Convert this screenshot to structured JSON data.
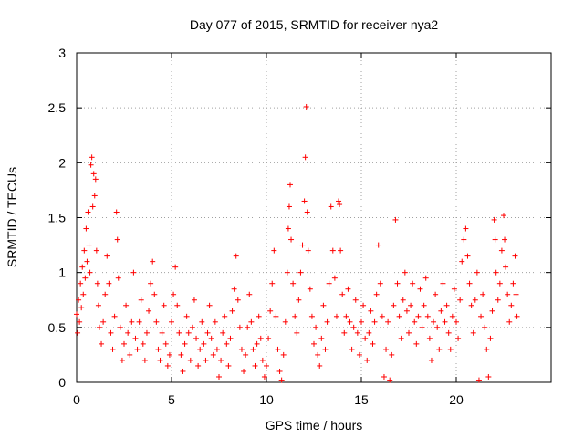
{
  "chart_data": {
    "type": "scatter",
    "title": "Day 077 of 2015, SRMTID for receiver nya2",
    "xlabel": "GPS time / hours",
    "ylabel": "SRMTID / TECUs",
    "xlim": [
      0,
      25
    ],
    "ylim": [
      0,
      3
    ],
    "xticks": [
      0,
      5,
      10,
      15,
      20
    ],
    "yticks": [
      0,
      0.5,
      1,
      1.5,
      2,
      2.5,
      3
    ],
    "xtick_labels": [
      "0",
      "5",
      "10",
      "15",
      "20"
    ],
    "ytick_labels": [
      "0",
      "0.5",
      "1",
      "1.5",
      "2",
      "2.5",
      "3"
    ],
    "grid": true,
    "marker": "+",
    "marker_color": "#ff0000",
    "series": [
      {
        "name": "SRMTID",
        "points": [
          [
            0.0,
            0.62
          ],
          [
            0.05,
            0.45
          ],
          [
            0.1,
            0.75
          ],
          [
            0.15,
            0.55
          ],
          [
            0.2,
            0.9
          ],
          [
            0.25,
            0.68
          ],
          [
            0.3,
            1.05
          ],
          [
            0.35,
            0.8
          ],
          [
            0.4,
            1.2
          ],
          [
            0.45,
            0.95
          ],
          [
            0.5,
            1.4
          ],
          [
            0.55,
            1.1
          ],
          [
            0.6,
            1.55
          ],
          [
            0.65,
            1.25
          ],
          [
            0.7,
            1.0
          ],
          [
            0.75,
            1.98
          ],
          [
            0.8,
            2.05
          ],
          [
            0.85,
            1.6
          ],
          [
            0.9,
            1.9
          ],
          [
            0.95,
            1.7
          ],
          [
            1.0,
            1.85
          ],
          [
            1.05,
            1.2
          ],
          [
            1.1,
            0.9
          ],
          [
            1.15,
            0.7
          ],
          [
            1.2,
            0.5
          ],
          [
            1.3,
            0.35
          ],
          [
            1.4,
            0.55
          ],
          [
            1.5,
            0.8
          ],
          [
            1.6,
            1.15
          ],
          [
            1.7,
            0.9
          ],
          [
            1.8,
            0.45
          ],
          [
            1.9,
            0.3
          ],
          [
            2.0,
            0.6
          ],
          [
            2.1,
            1.55
          ],
          [
            2.15,
            1.3
          ],
          [
            2.2,
            0.95
          ],
          [
            2.3,
            0.5
          ],
          [
            2.4,
            0.2
          ],
          [
            2.5,
            0.35
          ],
          [
            2.6,
            0.7
          ],
          [
            2.7,
            0.45
          ],
          [
            2.8,
            0.25
          ],
          [
            2.9,
            0.55
          ],
          [
            3.0,
            1.0
          ],
          [
            3.1,
            0.4
          ],
          [
            3.2,
            0.3
          ],
          [
            3.3,
            0.55
          ],
          [
            3.4,
            0.75
          ],
          [
            3.5,
            0.35
          ],
          [
            3.6,
            0.2
          ],
          [
            3.7,
            0.45
          ],
          [
            3.8,
            0.65
          ],
          [
            3.9,
            0.9
          ],
          [
            4.0,
            1.1
          ],
          [
            4.1,
            0.8
          ],
          [
            4.2,
            0.55
          ],
          [
            4.3,
            0.3
          ],
          [
            4.4,
            0.2
          ],
          [
            4.5,
            0.45
          ],
          [
            4.6,
            0.7
          ],
          [
            4.7,
            0.35
          ],
          [
            4.8,
            0.15
          ],
          [
            4.9,
            0.25
          ],
          [
            5.0,
            0.55
          ],
          [
            5.1,
            0.8
          ],
          [
            5.2,
            1.05
          ],
          [
            5.3,
            0.7
          ],
          [
            5.4,
            0.45
          ],
          [
            5.5,
            0.25
          ],
          [
            5.6,
            0.1
          ],
          [
            5.7,
            0.35
          ],
          [
            5.8,
            0.6
          ],
          [
            5.9,
            0.45
          ],
          [
            6.0,
            0.2
          ],
          [
            6.1,
            0.5
          ],
          [
            6.2,
            0.75
          ],
          [
            6.3,
            0.4
          ],
          [
            6.4,
            0.15
          ],
          [
            6.5,
            0.3
          ],
          [
            6.6,
            0.55
          ],
          [
            6.7,
            0.35
          ],
          [
            6.8,
            0.2
          ],
          [
            6.9,
            0.45
          ],
          [
            7.0,
            0.7
          ],
          [
            7.1,
            0.4
          ],
          [
            7.2,
            0.25
          ],
          [
            7.3,
            0.55
          ],
          [
            7.4,
            0.3
          ],
          [
            7.5,
            0.05
          ],
          [
            7.6,
            0.2
          ],
          [
            7.7,
            0.45
          ],
          [
            7.8,
            0.6
          ],
          [
            7.9,
            0.35
          ],
          [
            8.0,
            0.15
          ],
          [
            8.1,
            0.4
          ],
          [
            8.2,
            0.65
          ],
          [
            8.3,
            0.85
          ],
          [
            8.4,
            1.15
          ],
          [
            8.5,
            0.75
          ],
          [
            8.6,
            0.5
          ],
          [
            8.7,
            0.3
          ],
          [
            8.8,
            0.1
          ],
          [
            8.9,
            0.25
          ],
          [
            9.0,
            0.5
          ],
          [
            9.1,
            0.8
          ],
          [
            9.2,
            0.55
          ],
          [
            9.3,
            0.3
          ],
          [
            9.4,
            0.15
          ],
          [
            9.5,
            0.35
          ],
          [
            9.6,
            0.6
          ],
          [
            9.7,
            0.4
          ],
          [
            9.8,
            0.2
          ],
          [
            9.9,
            0.05
          ],
          [
            10.0,
            0.15
          ],
          [
            10.1,
            0.4
          ],
          [
            10.2,
            0.65
          ],
          [
            10.3,
            0.9
          ],
          [
            10.4,
            1.2
          ],
          [
            10.5,
            0.6
          ],
          [
            10.6,
            0.3
          ],
          [
            10.7,
            0.1
          ],
          [
            10.8,
            0.02
          ],
          [
            10.9,
            0.25
          ],
          [
            11.0,
            0.55
          ],
          [
            11.1,
            1.0
          ],
          [
            11.15,
            1.4
          ],
          [
            11.2,
            1.6
          ],
          [
            11.25,
            1.8
          ],
          [
            11.3,
            1.3
          ],
          [
            11.4,
            0.9
          ],
          [
            11.5,
            0.6
          ],
          [
            11.6,
            0.45
          ],
          [
            11.7,
            0.75
          ],
          [
            11.8,
            1.0
          ],
          [
            11.9,
            1.25
          ],
          [
            12.0,
            1.65
          ],
          [
            12.05,
            2.05
          ],
          [
            12.1,
            2.51
          ],
          [
            12.15,
            1.55
          ],
          [
            12.2,
            1.2
          ],
          [
            12.3,
            0.85
          ],
          [
            12.4,
            0.6
          ],
          [
            12.5,
            0.35
          ],
          [
            12.6,
            0.5
          ],
          [
            12.7,
            0.25
          ],
          [
            12.8,
            0.15
          ],
          [
            12.9,
            0.4
          ],
          [
            13.0,
            0.7
          ],
          [
            13.1,
            0.3
          ],
          [
            13.2,
            0.55
          ],
          [
            13.3,
            0.9
          ],
          [
            13.4,
            1.6
          ],
          [
            13.5,
            1.2
          ],
          [
            13.6,
            0.95
          ],
          [
            13.7,
            0.6
          ],
          [
            13.8,
            1.65
          ],
          [
            13.85,
            1.62
          ],
          [
            13.9,
            1.2
          ],
          [
            14.0,
            0.8
          ],
          [
            14.1,
            0.45
          ],
          [
            14.2,
            0.6
          ],
          [
            14.3,
            0.85
          ],
          [
            14.4,
            0.55
          ],
          [
            14.5,
            0.3
          ],
          [
            14.6,
            0.5
          ],
          [
            14.7,
            0.75
          ],
          [
            14.8,
            0.45
          ],
          [
            14.9,
            0.25
          ],
          [
            15.0,
            0.55
          ],
          [
            15.1,
            0.7
          ],
          [
            15.2,
            0.4
          ],
          [
            15.3,
            0.2
          ],
          [
            15.4,
            0.45
          ],
          [
            15.5,
            0.65
          ],
          [
            15.6,
            0.35
          ],
          [
            15.7,
            0.55
          ],
          [
            15.8,
            0.8
          ],
          [
            15.9,
            1.25
          ],
          [
            16.0,
            0.9
          ],
          [
            16.1,
            0.6
          ],
          [
            16.2,
            0.05
          ],
          [
            16.3,
            0.3
          ],
          [
            16.4,
            0.55
          ],
          [
            16.5,
            0.02
          ],
          [
            16.6,
            0.25
          ],
          [
            16.7,
            0.7
          ],
          [
            16.8,
            1.48
          ],
          [
            16.9,
            0.9
          ],
          [
            17.0,
            0.6
          ],
          [
            17.1,
            0.4
          ],
          [
            17.2,
            0.75
          ],
          [
            17.3,
            1.0
          ],
          [
            17.4,
            0.65
          ],
          [
            17.5,
            0.45
          ],
          [
            17.6,
            0.7
          ],
          [
            17.7,
            0.9
          ],
          [
            17.8,
            0.55
          ],
          [
            17.9,
            0.35
          ],
          [
            18.0,
            0.6
          ],
          [
            18.1,
            0.85
          ],
          [
            18.2,
            0.5
          ],
          [
            18.3,
            0.7
          ],
          [
            18.4,
            0.95
          ],
          [
            18.5,
            0.6
          ],
          [
            18.6,
            0.4
          ],
          [
            18.7,
            0.2
          ],
          [
            18.8,
            0.55
          ],
          [
            18.9,
            0.8
          ],
          [
            19.0,
            0.5
          ],
          [
            19.1,
            0.3
          ],
          [
            19.2,
            0.65
          ],
          [
            19.3,
            0.9
          ],
          [
            19.4,
            0.55
          ],
          [
            19.5,
            0.7
          ],
          [
            19.6,
            0.45
          ],
          [
            19.7,
            0.3
          ],
          [
            19.8,
            0.6
          ],
          [
            19.9,
            0.85
          ],
          [
            20.0,
            0.55
          ],
          [
            20.1,
            0.4
          ],
          [
            20.2,
            0.75
          ],
          [
            20.3,
            1.1
          ],
          [
            20.4,
            1.3
          ],
          [
            20.5,
            1.4
          ],
          [
            20.6,
            1.15
          ],
          [
            20.7,
            0.9
          ],
          [
            20.8,
            0.7
          ],
          [
            20.9,
            0.45
          ],
          [
            21.0,
            0.75
          ],
          [
            21.1,
            1.0
          ],
          [
            21.2,
            0.02
          ],
          [
            21.3,
            0.6
          ],
          [
            21.4,
            0.8
          ],
          [
            21.5,
            0.5
          ],
          [
            21.6,
            0.3
          ],
          [
            21.7,
            0.05
          ],
          [
            21.8,
            0.4
          ],
          [
            21.9,
            0.65
          ],
          [
            22.0,
            1.48
          ],
          [
            22.05,
            1.3
          ],
          [
            22.1,
            1.0
          ],
          [
            22.2,
            0.75
          ],
          [
            22.3,
            0.9
          ],
          [
            22.4,
            1.2
          ],
          [
            22.5,
            1.52
          ],
          [
            22.55,
            1.3
          ],
          [
            22.6,
            1.05
          ],
          [
            22.7,
            0.8
          ],
          [
            22.8,
            0.55
          ],
          [
            22.9,
            0.7
          ],
          [
            23.0,
            0.9
          ],
          [
            23.1,
            1.15
          ],
          [
            23.15,
            0.8
          ],
          [
            23.2,
            0.6
          ]
        ]
      }
    ]
  }
}
